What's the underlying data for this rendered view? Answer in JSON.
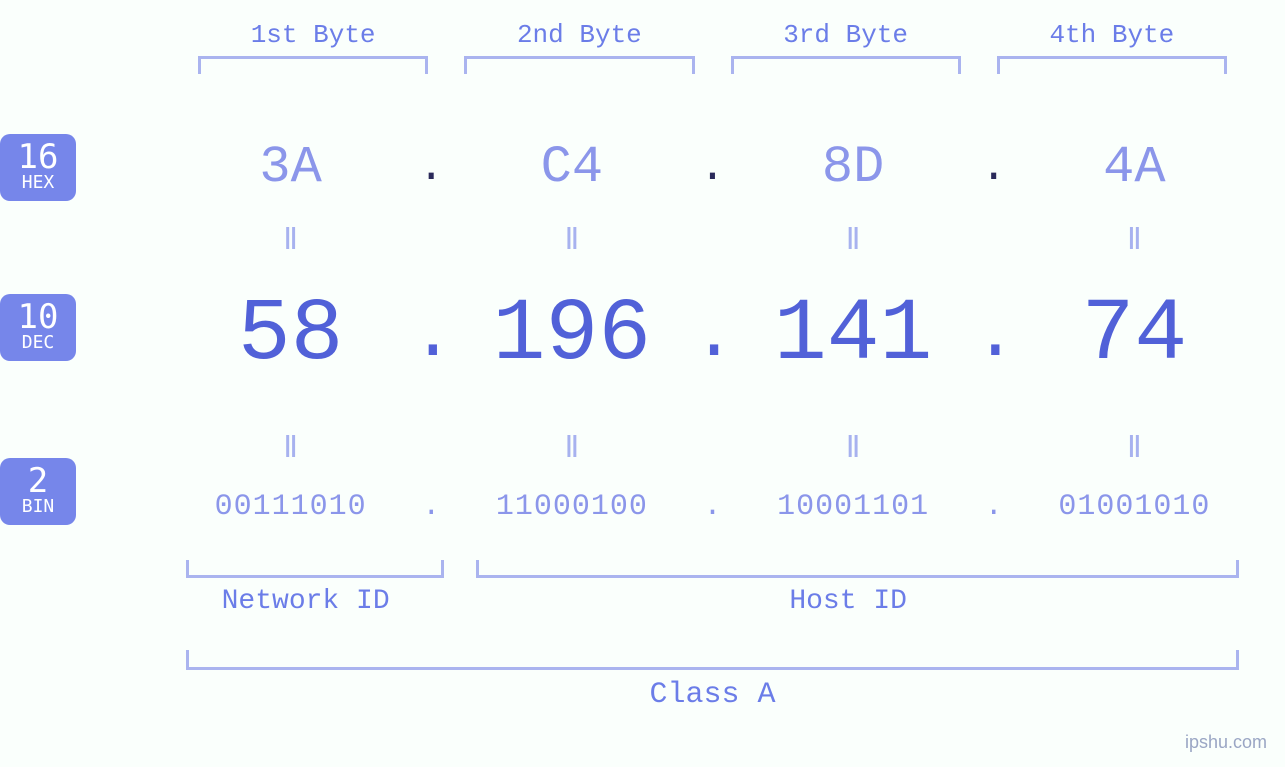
{
  "type": "infographic",
  "background_color": "#fafffc",
  "accent_color": "#7686ea",
  "light_accent": "#aab4ef",
  "value_light_color": "#8b96ea",
  "value_dark_color": "#5161d8",
  "label_color": "#6b7de8",
  "badge_text_color": "#ffffff",
  "font_family": "monospace",
  "byte_labels": [
    "1st Byte",
    "2nd Byte",
    "3rd Byte",
    "4th Byte"
  ],
  "byte_label_fontsize": 26,
  "badges": {
    "hex": {
      "base": "16",
      "abbr": "HEX"
    },
    "dec": {
      "base": "10",
      "abbr": "DEC"
    },
    "bin": {
      "base": "2",
      "abbr": "BIN"
    }
  },
  "badge_num_fontsize": 34,
  "badge_abbr_fontsize": 18,
  "hex": [
    "3A",
    "C4",
    "8D",
    "4A"
  ],
  "hex_fontsize": 52,
  "dec": [
    "58",
    "196",
    "141",
    "74"
  ],
  "dec_fontsize": 88,
  "bin": [
    "00111010",
    "11000100",
    "10001101",
    "01001010"
  ],
  "bin_fontsize": 30,
  "equals_symbol": "Ⅱ",
  "equals_fontsize": 30,
  "dot": ".",
  "network_id_label": "Network ID",
  "host_id_label": "Host ID",
  "class_label": "Class A",
  "class_label_fontsize": 30,
  "network_id_bytes": 1,
  "host_id_bytes": 3,
  "bracket_border_width": 3,
  "watermark": "ipshu.com",
  "watermark_color": "#9aa6c4"
}
